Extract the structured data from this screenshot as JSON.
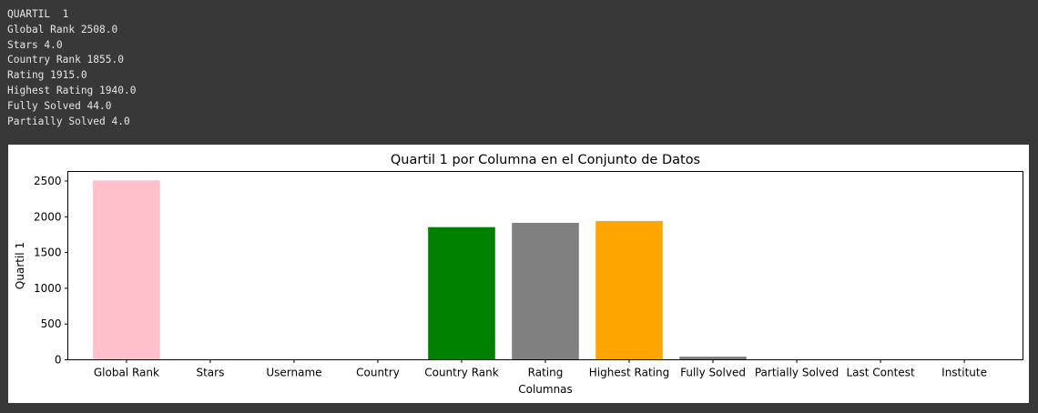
{
  "console": {
    "lines": [
      "QUARTIL  1",
      "Global Rank 2508.0",
      "Stars 4.0",
      "Country Rank 1855.0",
      "Rating 1915.0",
      "Highest Rating 1940.0",
      "Fully Solved 44.0",
      "Partially Solved 4.0"
    ]
  },
  "chart_data": {
    "type": "bar",
    "title": "Quartil 1 por Columna en el Conjunto de Datos",
    "xlabel": "Columnas",
    "ylabel": "Quartil 1",
    "categories": [
      "Global Rank",
      "Stars",
      "Username",
      "Country",
      "Country Rank",
      "Rating",
      "Highest Rating",
      "Fully Solved",
      "Partially Solved",
      "Last Contest",
      "Institute"
    ],
    "values": [
      2508.0,
      4.0,
      0,
      0,
      1855.0,
      1915.0,
      1940.0,
      44.0,
      4.0,
      0,
      0
    ],
    "colors": [
      "#ffc0cb",
      "#0000ff",
      "#1f77b4",
      "#1f77b4",
      "#008000",
      "#808080",
      "#ffa500",
      "#808080",
      "#800080",
      "#1f77b4",
      "#1f77b4"
    ],
    "ylim": [
      0,
      2633.4
    ],
    "yticks": [
      0,
      500,
      1000,
      1500,
      2000,
      2500
    ],
    "grid": false,
    "legend": "none"
  }
}
